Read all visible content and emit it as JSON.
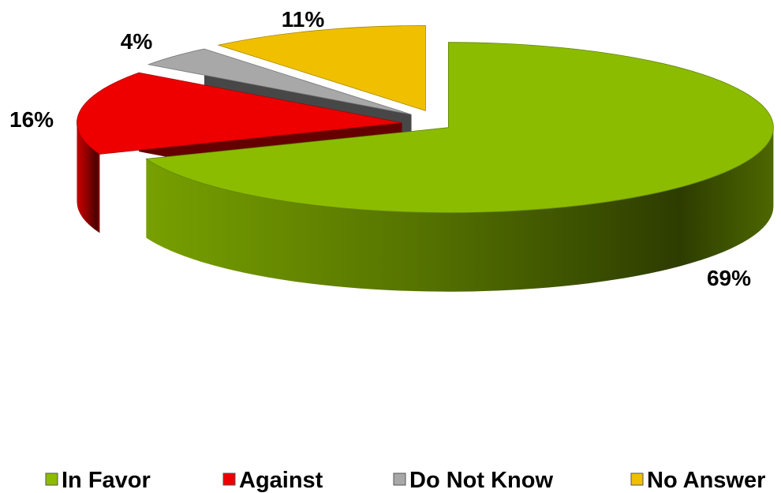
{
  "chart_data": {
    "type": "pie",
    "style": "3d-exploded",
    "legend_position": "bottom",
    "slices": [
      {
        "label": "In Favor",
        "value": 69,
        "display": "69%",
        "color": "#8cbc00"
      },
      {
        "label": "Against",
        "value": 16,
        "display": "16%",
        "color": "#ee0000"
      },
      {
        "label": "Do Not Know",
        "value": 4,
        "display": "4%",
        "color": "#a8a8a8"
      },
      {
        "label": "No Answer",
        "value": 11,
        "display": "11%",
        "color": "#f0c000"
      }
    ]
  }
}
